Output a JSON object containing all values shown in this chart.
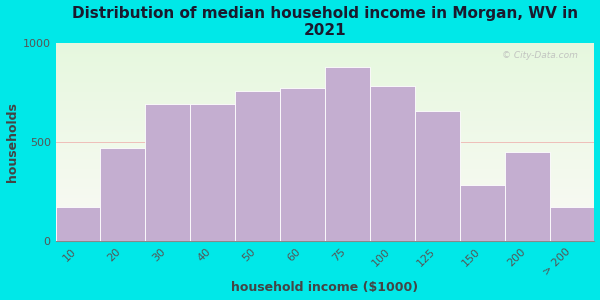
{
  "title": "Distribution of median household income in Morgan, WV in\n2021",
  "xlabel": "household income ($1000)",
  "ylabel": "households",
  "background_color": "#00e8e8",
  "bar_color": "#c4aed0",
  "bar_edge_color": "#ffffff",
  "categories": [
    "10",
    "20",
    "30",
    "40",
    "50",
    "60",
    "75",
    "100",
    "125",
    "150",
    "200",
    "> 200"
  ],
  "values": [
    175,
    470,
    695,
    695,
    760,
    775,
    880,
    785,
    660,
    285,
    450,
    175
  ],
  "ylim": [
    0,
    1000
  ],
  "yticks": [
    0,
    500,
    1000
  ],
  "title_fontsize": 11,
  "axis_label_fontsize": 9,
  "tick_fontsize": 8,
  "watermark_text": "© City-Data.com"
}
